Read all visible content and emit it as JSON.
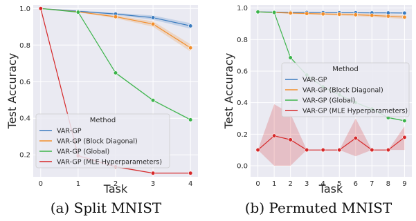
{
  "colors": {
    "VAR-GP": "#3a7bbf",
    "VAR-GP (Block Diagonal)": "#f28e2b",
    "VAR-GP (Global)": "#3cb44b",
    "VAR-GP (MLE Hyperparameters)": "#d62728",
    "panel_bg": "#eaeaf2",
    "grid": "#ffffff"
  },
  "chart_data": [
    {
      "type": "line",
      "caption": "(a) Split MNIST",
      "xlabel": "Task",
      "ylabel": "Test Accuracy",
      "xlim": [
        -0.2,
        4.2
      ],
      "ylim": [
        0.08,
        1.02
      ],
      "xticks": [
        0,
        1,
        2,
        3,
        4
      ],
      "yticks": [
        0.2,
        0.4,
        0.6,
        0.8,
        1.0
      ],
      "ytick_labels": [
        "0.2",
        "0.4",
        "0.6",
        "0.8",
        "1.0"
      ],
      "grid": true,
      "legend": {
        "title": "Method",
        "placement": "lower-left",
        "entries": [
          "VAR-GP",
          "VAR-GP (Block Diagonal)",
          "VAR-GP (Global)",
          "VAR-GP (MLE Hyperparameters)"
        ]
      },
      "x": [
        0,
        1,
        2,
        3,
        4
      ],
      "series": [
        {
          "name": "VAR-GP",
          "values": [
            1.0,
            0.985,
            0.97,
            0.95,
            0.905
          ],
          "band": [
            0.0,
            0.004,
            0.006,
            0.012,
            0.015
          ]
        },
        {
          "name": "VAR-GP (Block Diagonal)",
          "values": [
            1.0,
            0.982,
            0.955,
            0.915,
            0.785
          ],
          "band": [
            0.0,
            0.004,
            0.008,
            0.015,
            0.02
          ]
        },
        {
          "name": "VAR-GP (Global)",
          "values": [
            1.0,
            0.98,
            0.648,
            0.498,
            0.392
          ],
          "band": [
            0.0,
            0.003,
            0.004,
            0.004,
            0.004
          ]
        },
        {
          "name": "VAR-GP (MLE Hyperparameters)",
          "values": [
            1.0,
            0.195,
            0.135,
            0.1,
            0.1
          ],
          "band": [
            0.0,
            0.005,
            0.005,
            0.003,
            0.003
          ]
        }
      ]
    },
    {
      "type": "line",
      "caption": "(b) Permuted MNIST",
      "xlabel": "Task",
      "ylabel": "Test Accuracy",
      "xlim": [
        -0.45,
        9.45
      ],
      "ylim": [
        -0.07,
        1.02
      ],
      "xticks": [
        0,
        1,
        2,
        3,
        4,
        5,
        6,
        7,
        8,
        9
      ],
      "yticks": [
        0.0,
        0.2,
        0.4,
        0.6,
        0.8,
        1.0
      ],
      "ytick_labels": [
        "0.0",
        "0.2",
        "0.4",
        "0.6",
        "0.8",
        "1.0"
      ],
      "grid": true,
      "legend": {
        "title": "Method",
        "placement": "center-right",
        "entries": [
          "VAR-GP",
          "VAR-GP (Block Diagonal)",
          "VAR-GP (Global)",
          "VAR-GP (MLE Hyperparameters)"
        ]
      },
      "x": [
        0,
        1,
        2,
        3,
        4,
        5,
        6,
        7,
        8,
        9
      ],
      "series": [
        {
          "name": "VAR-GP",
          "values": [
            0.975,
            0.974,
            0.972,
            0.972,
            0.971,
            0.97,
            0.97,
            0.969,
            0.969,
            0.968
          ],
          "band": [
            0.003,
            0.003,
            0.003,
            0.003,
            0.003,
            0.003,
            0.003,
            0.003,
            0.003,
            0.003
          ]
        },
        {
          "name": "VAR-GP (Block Diagonal)",
          "values": [
            0.975,
            0.972,
            0.968,
            0.965,
            0.962,
            0.96,
            0.957,
            0.953,
            0.948,
            0.942
          ],
          "band": [
            0.003,
            0.004,
            0.005,
            0.006,
            0.007,
            0.008,
            0.009,
            0.01,
            0.011,
            0.012
          ]
        },
        {
          "name": "VAR-GP (Global)",
          "values": [
            0.975,
            0.972,
            0.685,
            0.575,
            0.5,
            0.45,
            0.4,
            0.36,
            0.305,
            0.285
          ],
          "band": [
            0.002,
            0.002,
            0.004,
            0.004,
            0.004,
            0.004,
            0.004,
            0.004,
            0.004,
            0.004
          ]
        },
        {
          "name": "VAR-GP (MLE Hyperparameters)",
          "values": [
            0.1,
            0.19,
            0.165,
            0.1,
            0.1,
            0.1,
            0.175,
            0.1,
            0.1,
            0.18
          ],
          "lower": [
            0.1,
            0.0,
            0.0,
            0.1,
            0.1,
            0.1,
            0.06,
            0.1,
            0.1,
            0.1
          ],
          "upper": [
            0.1,
            0.39,
            0.33,
            0.1,
            0.1,
            0.1,
            0.3,
            0.1,
            0.1,
            0.25
          ]
        }
      ]
    }
  ]
}
